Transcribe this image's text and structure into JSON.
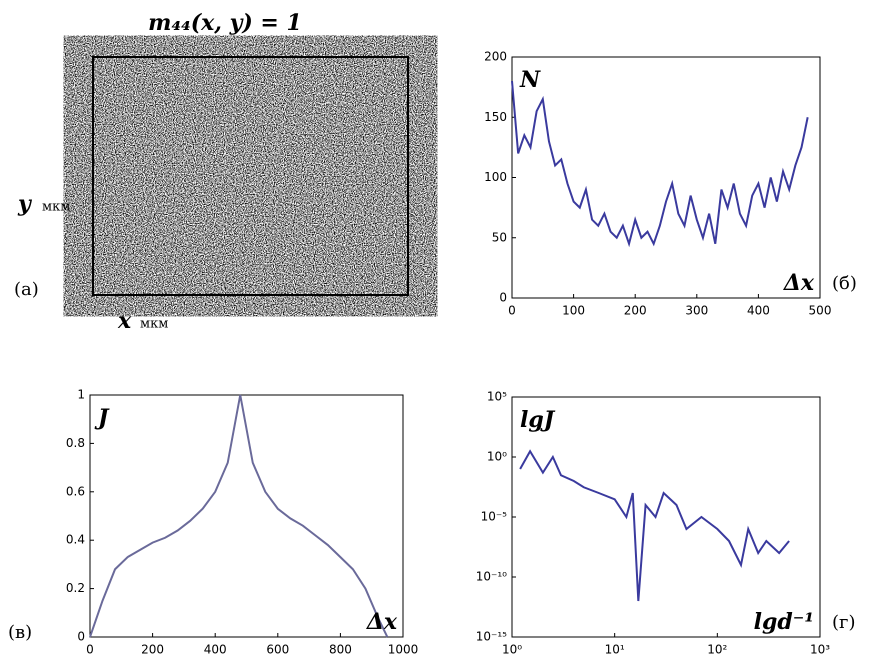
{
  "image_panel": {
    "title": "m₄₄(x, y) = 1",
    "y_label": "y",
    "y_unit": "мкм",
    "x_label": "x",
    "x_unit": "мкм",
    "tag": "(а)"
  },
  "chart_data": [
    {
      "type": "line",
      "title": "N",
      "x_label": "Δx",
      "tag": "(б)",
      "xlim": [
        0,
        500
      ],
      "ylim": [
        0,
        200
      ],
      "xticks": [
        0,
        100,
        200,
        300,
        400,
        500
      ],
      "yticks": [
        0,
        50,
        100,
        150,
        200
      ],
      "x": [
        0,
        10,
        20,
        30,
        40,
        50,
        60,
        70,
        80,
        90,
        100,
        110,
        120,
        130,
        140,
        150,
        160,
        170,
        180,
        190,
        200,
        210,
        220,
        230,
        240,
        250,
        260,
        270,
        280,
        290,
        300,
        310,
        320,
        330,
        340,
        350,
        360,
        370,
        380,
        390,
        400,
        410,
        420,
        430,
        440,
        450,
        460,
        470,
        480
      ],
      "series": [
        {
          "color": "#3a3a9e",
          "values": [
            180,
            120,
            135,
            125,
            155,
            165,
            130,
            110,
            115,
            95,
            80,
            75,
            90,
            65,
            60,
            70,
            55,
            50,
            60,
            45,
            65,
            50,
            55,
            45,
            60,
            80,
            95,
            70,
            60,
            85,
            65,
            50,
            70,
            45,
            90,
            75,
            95,
            70,
            60,
            85,
            95,
            75,
            100,
            80,
            105,
            90,
            110,
            125,
            150
          ]
        }
      ]
    },
    {
      "type": "line",
      "title": "J",
      "x_label": "Δx",
      "tag": "(в)",
      "xlim": [
        0,
        1000
      ],
      "ylim": [
        0,
        1
      ],
      "xticks": [
        0,
        200,
        400,
        600,
        800,
        1000
      ],
      "yticks": [
        0,
        0.2,
        0.4,
        0.6,
        0.8,
        1
      ],
      "x": [
        0,
        40,
        80,
        120,
        160,
        200,
        240,
        280,
        320,
        360,
        400,
        440,
        480,
        520,
        560,
        600,
        640,
        680,
        720,
        760,
        800,
        840,
        880,
        920,
        950
      ],
      "series": [
        {
          "color": "#6a6a9a",
          "values": [
            0,
            0.15,
            0.28,
            0.33,
            0.36,
            0.39,
            0.41,
            0.44,
            0.48,
            0.53,
            0.6,
            0.72,
            1,
            0.72,
            0.6,
            0.53,
            0.49,
            0.46,
            0.42,
            0.38,
            0.33,
            0.28,
            0.2,
            0.08,
            0
          ]
        }
      ]
    },
    {
      "type": "line",
      "log": true,
      "title": "lgJ",
      "x_label": "lgd⁻¹",
      "tag": "(г)",
      "xlim": [
        1,
        1000
      ],
      "ylim": [
        1e-15,
        100000
      ],
      "xticks": [
        {
          "value": 1,
          "label": "10⁰"
        },
        {
          "value": 10,
          "label": "10¹"
        },
        {
          "value": 100,
          "label": "10²"
        },
        {
          "value": 1000,
          "label": "10³"
        }
      ],
      "yticks": [
        {
          "value": 1e-15,
          "label": "10⁻¹⁵"
        },
        {
          "value": 1e-10,
          "label": "10⁻¹⁰"
        },
        {
          "value": 1e-05,
          "label": "10⁻⁵"
        },
        {
          "value": 1,
          "label": "10⁰"
        },
        {
          "value": 100000,
          "label": "10⁵"
        }
      ],
      "x": [
        1.2,
        1.5,
        2,
        2.5,
        3,
        4,
        5,
        7,
        10,
        13,
        15,
        17,
        20,
        25,
        30,
        40,
        50,
        70,
        100,
        130,
        170,
        200,
        250,
        300,
        400,
        500
      ],
      "series": [
        {
          "color": "#3a3a9e",
          "values": [
            0.1,
            3,
            0.05,
            1,
            0.03,
            0.01,
            0.003,
            0.001,
            0.0003,
            1e-05,
            0.001,
            1e-12,
            0.0001,
            1e-05,
            0.001,
            0.0001,
            1e-06,
            1e-05,
            1e-06,
            1e-07,
            1e-09,
            1e-06,
            1e-08,
            1e-07,
            1e-08,
            1e-07
          ]
        }
      ]
    }
  ]
}
